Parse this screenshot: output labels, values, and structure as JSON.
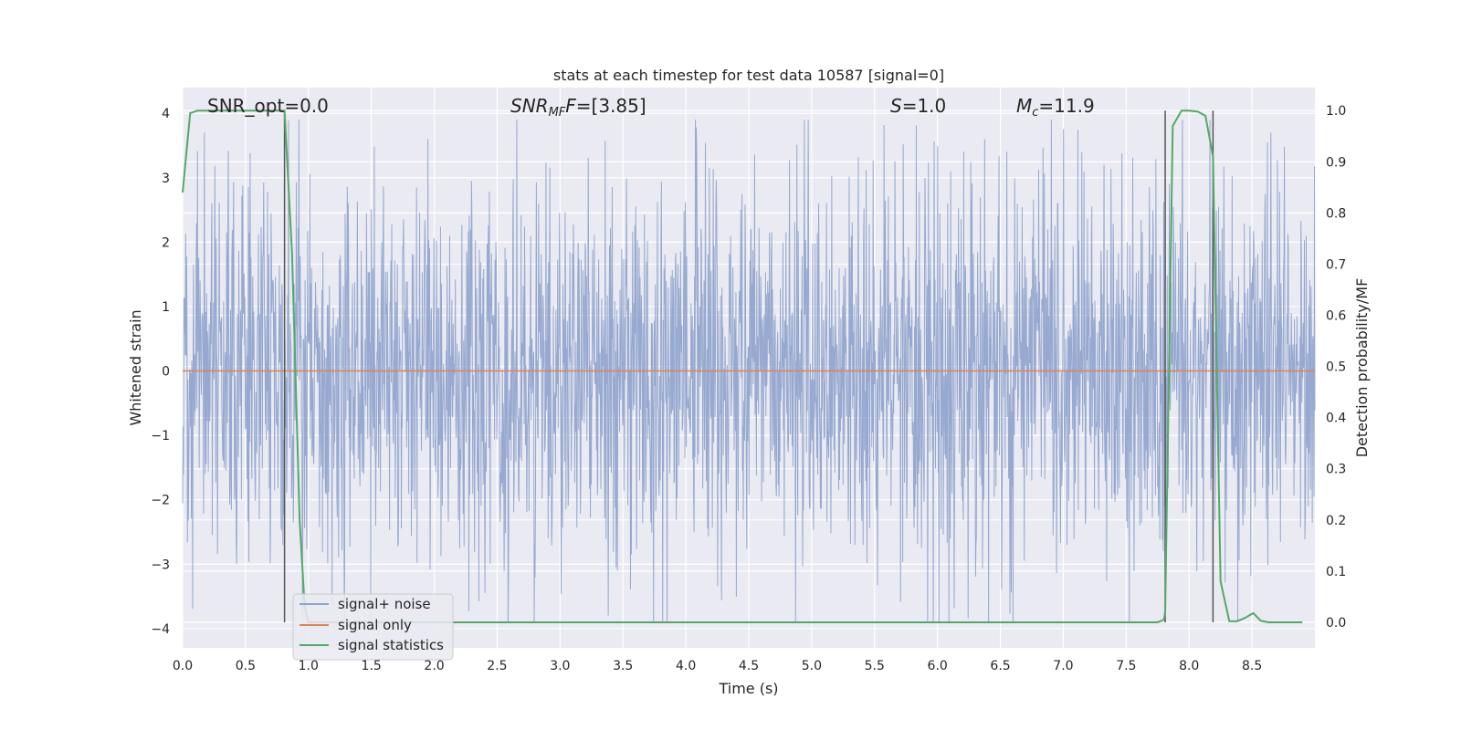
{
  "chart_data": {
    "type": "line",
    "title": "stats at each timestep for test data 10587 [signal=0]",
    "xlabel": "Time (s)",
    "ylabel": "Whitened strain",
    "ylabel_right": "Detection probability/MF",
    "xlim": [
      0.0,
      9.0
    ],
    "ylim": [
      -4.3,
      4.4
    ],
    "ylim_right": [
      -0.05,
      1.045
    ],
    "x_ticks": [
      "0.0",
      "0.5",
      "1.0",
      "1.5",
      "2.0",
      "2.5",
      "3.0",
      "3.5",
      "4.0",
      "4.5",
      "5.0",
      "5.5",
      "6.0",
      "6.5",
      "7.0",
      "7.5",
      "8.0",
      "8.5"
    ],
    "y_ticks": [
      "4",
      "3",
      "2",
      "1",
      "0",
      "−1",
      "−2",
      "−3",
      "−4"
    ],
    "y_ticks_right": [
      "1.0",
      "0.9",
      "0.8",
      "0.7",
      "0.6",
      "0.5",
      "0.4",
      "0.3",
      "0.2",
      "0.1",
      "0.0"
    ],
    "annotations": {
      "snr_opt": "SNR_opt=0.0",
      "snr_mf_main": "SNR",
      "snr_mf_sub": "MF",
      "snr_mf_value": "=[3.85]",
      "s_symbol": "S",
      "s_value": "=1.0",
      "mc_main": "M",
      "mc_sub": "c",
      "mc_value": "=11.9"
    },
    "legend": {
      "placement": "lower-left",
      "entries": [
        "signal+ noise",
        "signal only",
        "signal statistics"
      ]
    },
    "colors": {
      "noise": "#8ea2cc",
      "signal_only": "#dd8452",
      "statistics": "#55a868",
      "background": "#eaeaf2",
      "marker": "#555555"
    },
    "noise_amplitude_approx": 1.5,
    "vertical_markers_x": [
      0.81,
      7.81,
      8.19
    ],
    "series": [
      {
        "name": "signal+ noise",
        "description": "whitened strain samples, roughly +/-1.5 with peaks to +/-3.9"
      },
      {
        "name": "signal only",
        "x": [
          0.0,
          9.0
        ],
        "y": [
          0.0,
          0.0
        ]
      },
      {
        "name": "signal statistics",
        "axis": "right",
        "x": [
          0.0,
          0.06,
          0.12,
          0.2,
          0.3,
          0.4,
          0.5,
          0.6,
          0.7,
          0.81,
          0.87,
          0.93,
          0.97,
          1.0,
          1.5,
          2.0,
          3.0,
          4.0,
          5.0,
          6.0,
          7.0,
          7.5,
          7.75,
          7.8,
          7.81,
          7.87,
          7.94,
          8.0,
          8.07,
          8.13,
          8.19,
          8.25,
          8.32,
          8.38,
          8.44,
          8.51,
          8.57,
          8.63,
          8.7,
          8.8,
          8.9
        ],
        "y": [
          0.84,
          0.995,
          1.0,
          1.0,
          1.0,
          1.0,
          1.0,
          1.0,
          1.0,
          1.0,
          0.72,
          0.2,
          0.03,
          0.0,
          0.0,
          0.0,
          0.0,
          0.0,
          0.0,
          0.0,
          0.0,
          0.0,
          0.0,
          0.005,
          0.02,
          0.97,
          1.0,
          1.0,
          0.998,
          0.99,
          0.91,
          0.08,
          0.002,
          0.002,
          0.008,
          0.018,
          0.003,
          0.0,
          0.0,
          0.0,
          0.0
        ]
      }
    ]
  }
}
